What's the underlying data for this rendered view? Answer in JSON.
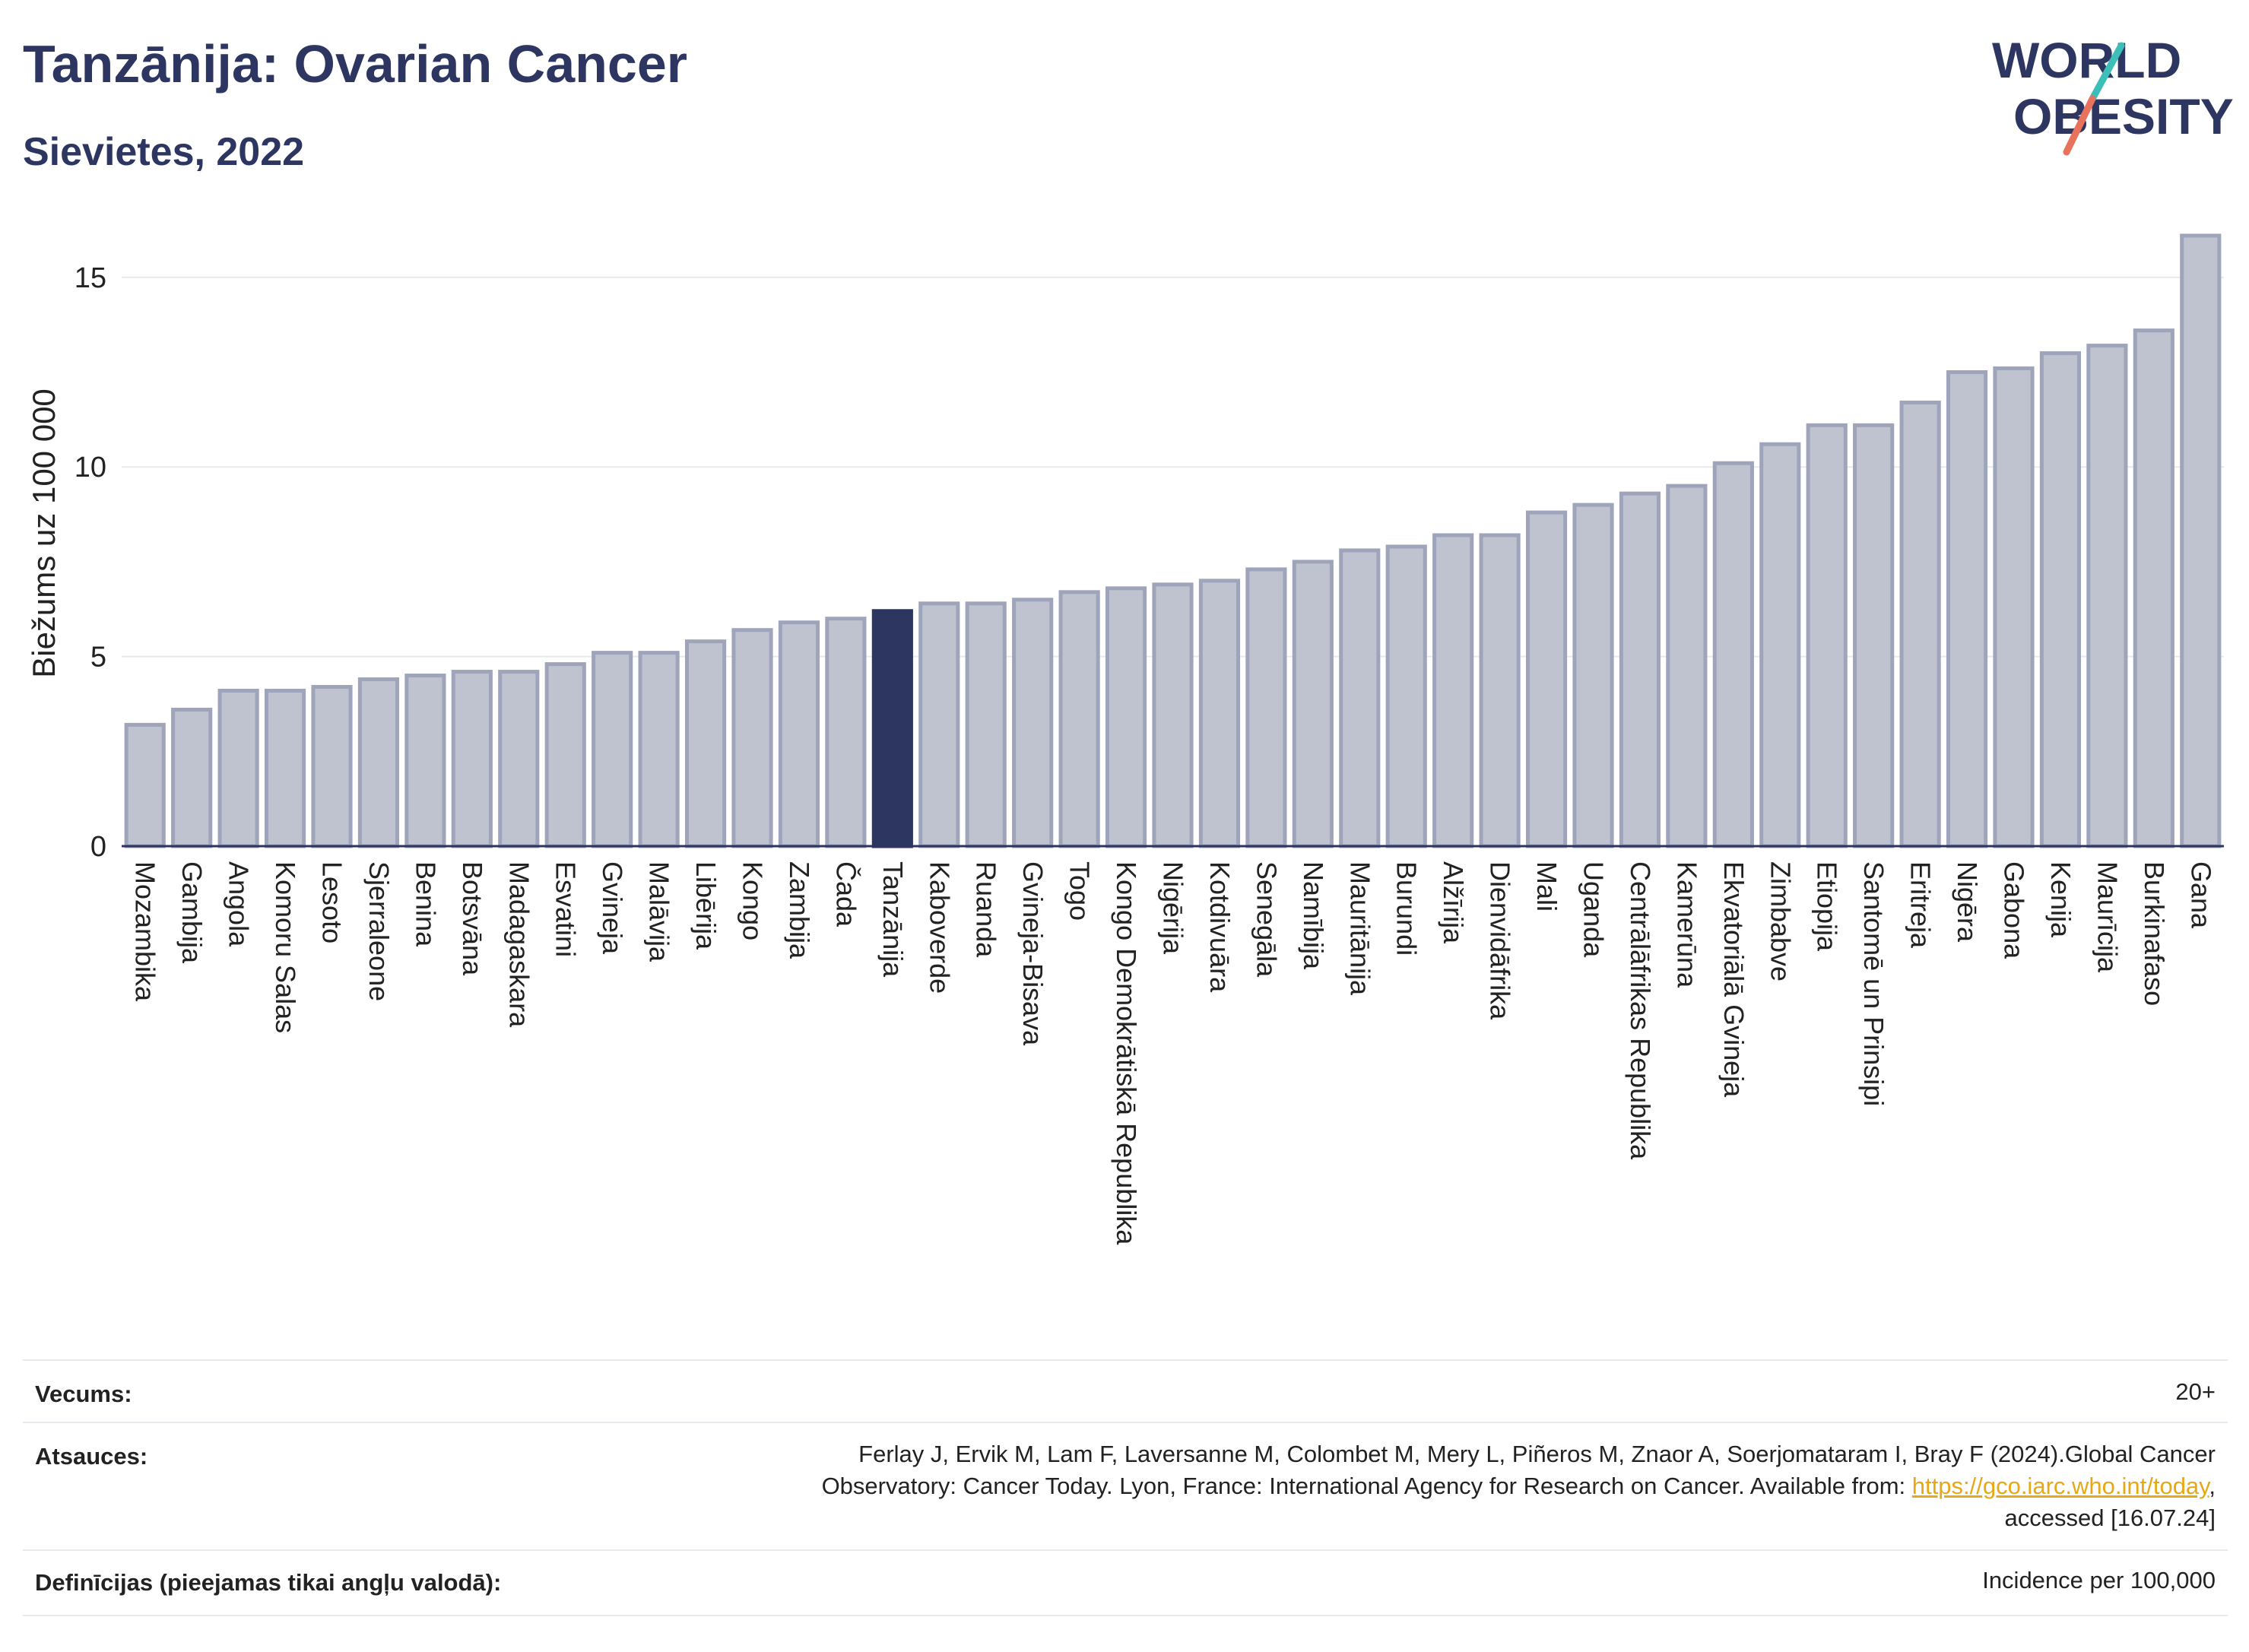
{
  "header": {
    "title": "Tanzānija: Ovarian Cancer",
    "subtitle": "Sievietes, 2022"
  },
  "logo": {
    "line1": "WORLD",
    "line2": "OBESITY",
    "colors": [
      "#2d3561",
      "#e8725c",
      "#3dbfb8"
    ]
  },
  "chart_data": {
    "type": "bar",
    "ylabel": "Biežums uz 100 000",
    "ylim": [
      0,
      16.5
    ],
    "yticks": [
      0,
      5,
      10,
      15
    ],
    "grid": true,
    "highlight": "Tanzānija",
    "colors": {
      "bar": "#bfc3d0",
      "bar_edge": "#9ea4ba",
      "highlight": "#2d3561",
      "grid": "#e6e9ee"
    },
    "categories": [
      "Mozambika",
      "Gambija",
      "Angola",
      "Komoru Salas",
      "Lesoto",
      "Sjerraleone",
      "Benina",
      "Botsvāna",
      "Madagaskara",
      "Esvatini",
      "Gvineja",
      "Malāvija",
      "Libērija",
      "Kongo",
      "Zambija",
      "Čada",
      "Tanzānija",
      "Kaboverde",
      "Ruanda",
      "Gvineja-Bisava",
      "Togo",
      "Kongo Demokrātiskā Republika",
      "Nigērija",
      "Kotdivuāra",
      "Senegāla",
      "Namībija",
      "Mauritānija",
      "Burundi",
      "Alžīrija",
      "Dienvidāfrika",
      "Mali",
      "Uganda",
      "Centrālāfrikas Republika",
      "Kamerūna",
      "Ekvatoriālā Gvineja",
      "Zimbabve",
      "Etiopija",
      "Santomē un Prinsipi",
      "Eritreja",
      "Nigēra",
      "Gabona",
      "Kenija",
      "Maurīcija",
      "Burkinafaso",
      "Gana"
    ],
    "values": [
      3.2,
      3.6,
      4.1,
      4.1,
      4.2,
      4.4,
      4.5,
      4.6,
      4.6,
      4.8,
      5.1,
      5.1,
      5.4,
      5.7,
      5.9,
      6.0,
      6.2,
      6.4,
      6.4,
      6.5,
      6.7,
      6.8,
      6.9,
      7.0,
      7.3,
      7.5,
      7.8,
      7.9,
      8.2,
      8.2,
      8.8,
      9.0,
      9.3,
      9.5,
      10.1,
      10.6,
      11.1,
      11.1,
      11.7,
      12.5,
      12.6,
      13.0,
      13.2,
      13.6,
      16.1
    ]
  },
  "info": {
    "age_label": "Vecums:",
    "age_value": "20+",
    "refs_label": "Atsauces:",
    "refs_line1": "Ferlay J, Ervik M, Lam F, Laversanne M, Colombet M, Mery L, Piñeros M, Znaor A, Soerjomataram I, Bray F (2024).Global Cancer",
    "refs_line2_pre": "Observatory: Cancer Today. Lyon, France: International Agency for Research on Cancer. Available from: ",
    "refs_link": "https://gco.iarc.who.int/today",
    "refs_line2_post": ",",
    "refs_line3": "accessed [16.07.24]",
    "def_label": "Definīcijas (pieejamas tikai angļu valodā):",
    "def_value": "Incidence per 100,000"
  }
}
